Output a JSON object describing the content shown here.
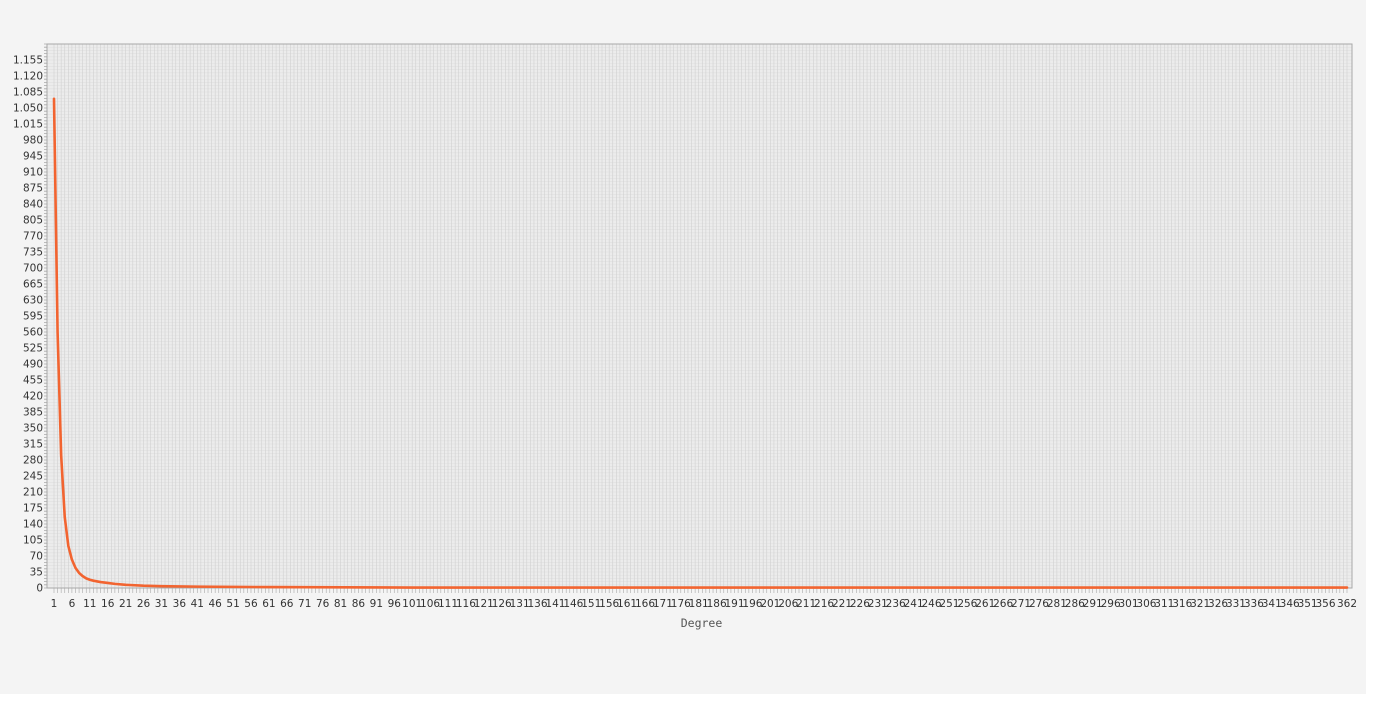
{
  "colors": {
    "background": "#f4f4f4",
    "plot_background": "#ececec",
    "grid": "#d0d0d0",
    "series": "#f26430",
    "axis": "#a8a8a8"
  },
  "chart_data": {
    "type": "line",
    "title": "",
    "xlabel": "Degree",
    "ylabel": "",
    "x_range": [
      1,
      362
    ],
    "ylim": [
      0,
      1190
    ],
    "y_ticks": [
      0,
      35,
      70,
      105,
      140,
      175,
      210,
      245,
      280,
      315,
      350,
      385,
      420,
      455,
      490,
      525,
      560,
      595,
      630,
      665,
      700,
      735,
      770,
      805,
      840,
      875,
      910,
      945,
      980,
      1015,
      1050,
      1085,
      1120,
      1155
    ],
    "y_tick_labels": [
      "0",
      "35",
      "70",
      "105",
      "140",
      "175",
      "210",
      "245",
      "280",
      "315",
      "350",
      "385",
      "420",
      "455",
      "490",
      "525",
      "560",
      "595",
      "630",
      "665",
      "700",
      "735",
      "770",
      "805",
      "840",
      "875",
      "910",
      "945",
      "980",
      "1.015",
      "1.050",
      "1.085",
      "1.120",
      "1.155"
    ],
    "x_ticks": [
      1,
      6,
      11,
      16,
      21,
      26,
      31,
      36,
      41,
      46,
      51,
      56,
      61,
      66,
      71,
      76,
      81,
      86,
      91,
      96,
      101,
      106,
      111,
      116,
      121,
      126,
      131,
      136,
      141,
      146,
      151,
      156,
      161,
      166,
      171,
      176,
      181,
      186,
      191,
      196,
      201,
      206,
      211,
      216,
      221,
      226,
      231,
      236,
      241,
      246,
      251,
      256,
      261,
      266,
      271,
      276,
      281,
      286,
      291,
      296,
      301,
      306,
      311,
      316,
      321,
      326,
      331,
      336,
      341,
      346,
      351,
      356,
      362
    ],
    "grid": true,
    "legend": "none",
    "series": [
      {
        "x": [
          1,
          2,
          3,
          4,
          5,
          6,
          7,
          8,
          9,
          10,
          11,
          12,
          14,
          16,
          18,
          21,
          26,
          31,
          41,
          61,
          101,
          201,
          362
        ],
        "values": [
          1070,
          560,
          290,
          155,
          92,
          62,
          44,
          33,
          26,
          21,
          18,
          16,
          13,
          11,
          9,
          7,
          5,
          4,
          3,
          2,
          1,
          1,
          1
        ]
      }
    ]
  }
}
